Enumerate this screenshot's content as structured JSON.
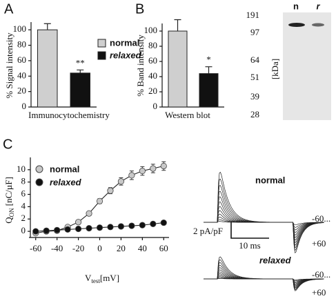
{
  "chart_data": [
    {
      "type": "bar",
      "label": "A",
      "ylabel": "% Signal intensity",
      "xlabel": "Immunocytochemistry",
      "categories": [
        "normal",
        "relaxed"
      ],
      "values": [
        100,
        44
      ],
      "errors": [
        8,
        4
      ],
      "colors": [
        "#cfcfcf",
        "#111111"
      ],
      "annotations": [
        {
          "text": "**",
          "at": 1
        }
      ],
      "ylim": [
        0,
        110
      ],
      "yticks": [
        0,
        20,
        40,
        60,
        80,
        100
      ],
      "legend": "right"
    },
    {
      "type": "bar",
      "label": "B",
      "ylabel": "% Band intensity",
      "xlabel": "Western blot",
      "values": [
        100,
        44
      ],
      "errors": [
        15,
        9
      ],
      "colors": [
        "#cfcfcf",
        "#111111"
      ],
      "annotations": [
        {
          "text": "*",
          "at": 1
        }
      ],
      "ylim": [
        0,
        110
      ],
      "yticks": [
        0,
        20,
        40,
        60,
        80,
        100
      ]
    },
    {
      "type": "scatter",
      "label": "C",
      "ylabel": [
        "Q",
        "ON",
        "[nC/µF]"
      ],
      "xlabel": [
        "V",
        "test",
        "[mV]"
      ],
      "x": [
        -60,
        -50,
        -40,
        -30,
        -20,
        -10,
        0,
        10,
        20,
        30,
        40,
        50,
        60
      ],
      "series": [
        {
          "name": "normal",
          "color": "#c8c8c8",
          "values": [
            -0.3,
            0.0,
            0.1,
            0.7,
            1.5,
            2.9,
            4.9,
            6.6,
            8.1,
            9.1,
            9.8,
            10.2,
            10.6
          ],
          "errors": [
            0.2,
            0.2,
            0.2,
            0.2,
            0.3,
            0.3,
            0.4,
            0.5,
            0.6,
            0.7,
            0.7,
            0.7,
            0.7
          ]
        },
        {
          "name": "relaxed",
          "color": "#111111",
          "values": [
            0.0,
            0.1,
            0.2,
            0.3,
            0.4,
            0.5,
            0.6,
            0.7,
            0.8,
            0.9,
            1.0,
            1.2,
            1.4
          ],
          "errors": [
            0.1,
            0.1,
            0.1,
            0.1,
            0.1,
            0.1,
            0.1,
            0.1,
            0.1,
            0.1,
            0.2,
            0.2,
            0.3
          ]
        }
      ],
      "xlim": [
        -65,
        65
      ],
      "xticks": [
        -60,
        -40,
        -20,
        0,
        20,
        40,
        60
      ],
      "ylim": [
        -1,
        12
      ],
      "yticks": [
        0,
        2,
        4,
        6,
        8,
        10
      ],
      "legend": "upper left"
    }
  ],
  "blot": {
    "lanes": [
      "n",
      "r"
    ],
    "markers": [
      191,
      97,
      64,
      51,
      39,
      28
    ],
    "unit_label": "[kDa]"
  },
  "traces": {
    "top_label": "normal",
    "bottom_label": "relaxed",
    "range_start": "-60...",
    "range_end": "+60",
    "scale_y": "2 pA/pF",
    "scale_x": "10 ms"
  }
}
